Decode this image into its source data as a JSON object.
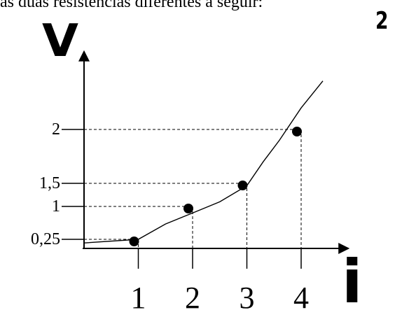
{
  "header": {
    "text": "as duas resistências diferentes a seguir:"
  },
  "figure_number": "2",
  "chart_data": {
    "type": "line",
    "xlabel": "i",
    "ylabel": "V",
    "x_ticks": [
      1,
      2,
      3,
      4
    ],
    "x_tick_labels": [
      "1",
      "2",
      "3",
      "4"
    ],
    "y_ticks": [
      0.25,
      1,
      1.5,
      2
    ],
    "y_tick_labels": [
      "0,25",
      "1",
      "1,5",
      "2"
    ],
    "points": [
      {
        "x": 1,
        "y": 0.25
      },
      {
        "x": 2,
        "y": 1
      },
      {
        "x": 3,
        "y": 1.5
      },
      {
        "x": 4,
        "y": 2
      }
    ],
    "curve": {
      "x": [
        0,
        1,
        1.5,
        2,
        2.5,
        3,
        3.3,
        3.6,
        4,
        4.4
      ],
      "y": [
        0.15,
        0.25,
        0.6,
        0.85,
        1.1,
        1.45,
        1.7,
        1.9,
        2.2,
        2.45
      ]
    },
    "grid": false,
    "legend": "none"
  }
}
